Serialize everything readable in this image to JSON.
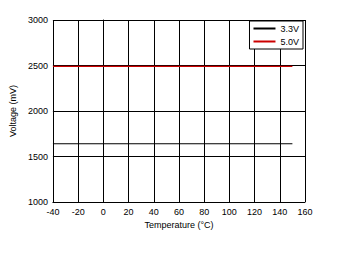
{
  "chart_data": {
    "type": "line",
    "x_label": "Temperature (°C)",
    "y_label": "Voltage (mV)",
    "x": [
      -40,
      0,
      50,
      100,
      150
    ],
    "series": [
      {
        "name": "3.3V",
        "color": "#000000",
        "values": [
          1640,
          1640,
          1640,
          1640,
          1640
        ]
      },
      {
        "name": "5.0V",
        "color": "#cc0000",
        "values": [
          2490,
          2490,
          2490,
          2490,
          2490
        ]
      }
    ],
    "xlim": [
      -40,
      160
    ],
    "xticks": [
      -40,
      -20,
      0,
      20,
      40,
      60,
      80,
      100,
      120,
      140,
      160
    ],
    "ylim": [
      1000,
      3000
    ],
    "yticks": [
      1000,
      1500,
      2000,
      2500,
      3000
    ],
    "grid": true,
    "legend": "upper right"
  }
}
